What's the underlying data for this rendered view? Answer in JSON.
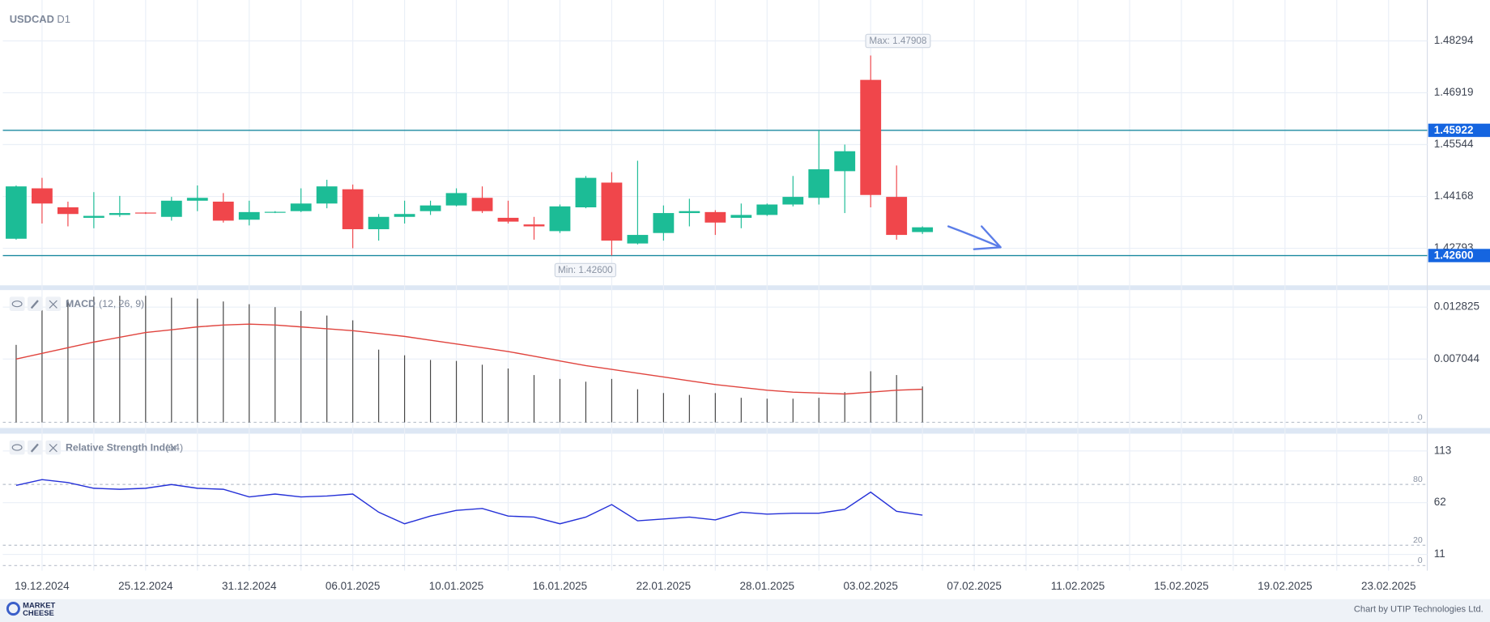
{
  "chart_data": [
    {
      "type": "candlestick",
      "title": "USDCAD",
      "timeframe": "D1",
      "open": [
        1.43046,
        1.44383,
        1.43879,
        1.43601,
        1.43677,
        1.4374,
        1.43626,
        1.44055,
        1.4403,
        1.43551,
        1.43753,
        1.43778,
        1.4398,
        1.44358,
        1.43299,
        1.43626,
        1.43778,
        1.43929,
        1.44131,
        1.43601,
        1.43425,
        1.43248,
        1.43879,
        1.44535,
        1.4292,
        1.43198,
        1.43727,
        1.43753,
        1.43601,
        1.43677,
        1.43954,
        1.44131,
        1.44838,
        1.4726,
        1.44156,
        1.43223
      ],
      "high": [
        1.44459,
        1.44661,
        1.4403,
        1.44282,
        1.44182,
        1.43753,
        1.44156,
        1.44459,
        1.44257,
        1.44055,
        1.43778,
        1.44383,
        1.4461,
        1.44484,
        1.43702,
        1.44055,
        1.44055,
        1.44383,
        1.44434,
        1.44055,
        1.43626,
        1.43954,
        1.44711,
        1.44812,
        1.45115,
        1.43929,
        1.44106,
        1.43803,
        1.4398,
        1.4398,
        1.44711,
        1.45922,
        1.45544,
        1.47908,
        1.44989,
        1.43374
      ],
      "low": [
        1.43021,
        1.4345,
        1.43374,
        1.43324,
        1.43626,
        1.43702,
        1.43526,
        1.43778,
        1.43475,
        1.43399,
        1.43727,
        1.43753,
        1.43854,
        1.42794,
        1.42996,
        1.4345,
        1.43677,
        1.43904,
        1.43727,
        1.4345,
        1.43021,
        1.43198,
        1.43854,
        1.426,
        1.42895,
        1.42996,
        1.43374,
        1.43147,
        1.43324,
        1.43652,
        1.43904,
        1.43954,
        1.43727,
        1.43879,
        1.43021,
        1.43172
      ],
      "close": [
        1.44434,
        1.4398,
        1.43702,
        1.43652,
        1.43727,
        1.43722,
        1.44055,
        1.44131,
        1.43526,
        1.43753,
        1.4376,
        1.4398,
        1.44434,
        1.43299,
        1.43626,
        1.43702,
        1.43929,
        1.44257,
        1.43778,
        1.435,
        1.43374,
        1.43904,
        1.44661,
        1.42996,
        1.43147,
        1.43727,
        1.43778,
        1.43475,
        1.43677,
        1.43954,
        1.44156,
        1.44888,
        1.45367,
        1.44207,
        1.43147,
        1.43349
      ],
      "up_color": "#1cbc96",
      "down_color": "#f0464b",
      "ylim": [
        1.4181,
        1.49379
      ],
      "yticks": [
        1.48294,
        1.46919,
        1.45544,
        1.44168,
        1.42793
      ],
      "levels": [
        1.45922,
        {
          "value": 1.426,
          "label": "1.42600"
        }
      ],
      "max_label": "Max: 1.47908",
      "min_label": "Min: 1.42600",
      "date_labels": [
        "19.12.2024",
        "25.12.2024",
        "31.12.2024",
        "06.01.2025",
        "10.01.2025",
        "16.01.2025",
        "22.01.2025",
        "28.01.2025",
        "03.02.2025",
        "07.02.2025",
        "11.02.2025",
        "15.02.2025",
        "19.02.2025",
        "23.02.2025"
      ]
    },
    {
      "type": "macd",
      "title": "MACD",
      "params": "(12, 26, 9)",
      "histogram": [
        0.00862,
        0.01303,
        0.01366,
        0.01398,
        0.01408,
        0.01408,
        0.01387,
        0.01377,
        0.01345,
        0.01314,
        0.01282,
        0.0124,
        0.01188,
        0.01135,
        0.00809,
        0.00746,
        0.00694,
        0.00683,
        0.00641,
        0.00599,
        0.00526,
        0.00483,
        0.00452,
        0.00483,
        0.00368,
        0.00326,
        0.00305,
        0.00326,
        0.00273,
        0.00263,
        0.00263,
        0.00273,
        0.00336,
        0.00568,
        0.00526,
        0.00399
      ],
      "signal": [
        0.00704,
        0.00767,
        0.0083,
        0.00893,
        0.00946,
        0.00999,
        0.0103,
        0.01062,
        0.01083,
        0.01093,
        0.01083,
        0.01062,
        0.01041,
        0.0102,
        0.00988,
        0.00956,
        0.00914,
        0.00872,
        0.0083,
        0.00788,
        0.00736,
        0.00683,
        0.00631,
        0.00589,
        0.00547,
        0.00505,
        0.00462,
        0.0042,
        0.00389,
        0.00357,
        0.00336,
        0.00326,
        0.00315,
        0.00336,
        0.00357,
        0.00368
      ],
      "histogram_color": "#444444",
      "signal_color": "#e0443e",
      "ylim": [
        -0.00063,
        0.014717
      ],
      "yticks": [
        0.012825,
        0.007044,
        0
      ]
    },
    {
      "type": "line",
      "title": "Relative Strength Index",
      "params": "(14)",
      "values": [
        79.0,
        84.7,
        81.8,
        76.2,
        75.2,
        76.2,
        79.9,
        76.2,
        75.2,
        67.7,
        70.5,
        67.7,
        68.6,
        70.5,
        52.6,
        41.2,
        48.8,
        54.4,
        56.3,
        48.8,
        47.8,
        41.2,
        47.8,
        60.1,
        44.1,
        45.9,
        47.8,
        45.0,
        52.6,
        50.7,
        51.6,
        51.6,
        55.4,
        72.4,
        53.5,
        49.7
      ],
      "color": "#2531d8",
      "ylim": [
        -5,
        130
      ],
      "yticks": [
        113,
        62,
        11
      ],
      "levels": [
        80,
        20,
        0
      ]
    }
  ],
  "footer": "Chart by UTIP Technologies Ltd.",
  "logo": [
    "MARKET",
    "CHEESE"
  ]
}
